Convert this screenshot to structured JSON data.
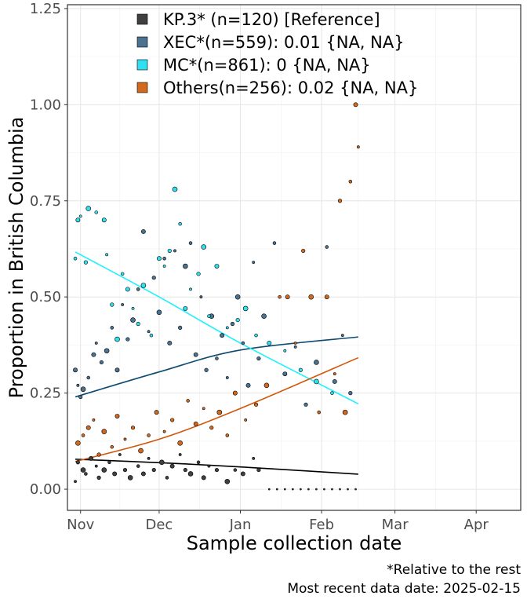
{
  "chart_data": {
    "type": "scatter",
    "title": "",
    "xlabel": "Sample collection date",
    "ylabel": "Proportion in British Columbia",
    "x_domain": [
      "2024-10-27",
      "2025-04-18"
    ],
    "ylim": [
      -0.055,
      1.26
    ],
    "x_ticks": [
      {
        "label": "Nov",
        "date": "2024-11-01"
      },
      {
        "label": "Dec",
        "date": "2024-12-01"
      },
      {
        "label": "Jan",
        "date": "2025-01-01"
      },
      {
        "label": "Feb",
        "date": "2025-02-01"
      },
      {
        "label": "Mar",
        "date": "2025-03-01"
      },
      {
        "label": "Apr",
        "date": "2025-04-01"
      }
    ],
    "y_ticks": [
      {
        "label": "0.00",
        "value": 0
      },
      {
        "label": "0.25",
        "value": 0.25
      },
      {
        "label": "0.50",
        "value": 0.5
      },
      {
        "label": "0.75",
        "value": 0.75
      },
      {
        "label": "1.00",
        "value": 1.0
      },
      {
        "label": "1.25",
        "value": 1.25
      }
    ],
    "grid": true,
    "legend_position": "top",
    "series": [
      {
        "name": "KP.3* (n=120)  [Reference]",
        "color": "#404040",
        "fit": [
          [
            "2024-10-30",
            0.078
          ],
          [
            "2024-12-01",
            0.069
          ],
          [
            "2025-01-01",
            0.058
          ],
          [
            "2025-02-15",
            0.039
          ]
        ],
        "points": [
          [
            "2024-10-30",
            0.02
          ],
          [
            "2024-10-31",
            0.07
          ],
          [
            "2024-11-02",
            0.05
          ],
          [
            "2024-11-03",
            0.04
          ],
          [
            "2024-11-05",
            0.08
          ],
          [
            "2024-11-07",
            0.06
          ],
          [
            "2024-11-08",
            0.03
          ],
          [
            "2024-11-10",
            0.05
          ],
          [
            "2024-11-12",
            0.07
          ],
          [
            "2024-11-14",
            0.04
          ],
          [
            "2024-11-16",
            0.09
          ],
          [
            "2024-11-18",
            0.05
          ],
          [
            "2024-11-20",
            0.03
          ],
          [
            "2024-11-23",
            0.06
          ],
          [
            "2024-11-25",
            0.04
          ],
          [
            "2024-11-27",
            0.08
          ],
          [
            "2024-11-29",
            0.05
          ],
          [
            "2024-12-02",
            0.07
          ],
          [
            "2024-12-04",
            0.03
          ],
          [
            "2024-12-06",
            0.06
          ],
          [
            "2024-12-09",
            0.09
          ],
          [
            "2024-12-11",
            0.05
          ],
          [
            "2024-12-13",
            0.04
          ],
          [
            "2024-12-16",
            0.07
          ],
          [
            "2024-12-18",
            0.03
          ],
          [
            "2024-12-20",
            0.06
          ],
          [
            "2024-12-23",
            0.05
          ],
          [
            "2024-12-27",
            0.02
          ],
          [
            "2024-12-30",
            0.05
          ],
          [
            "2025-01-02",
            0.04
          ],
          [
            "2025-01-06",
            0.08
          ],
          [
            "2025-01-08",
            0.05
          ],
          [
            "2025-01-12",
            0.0
          ],
          [
            "2025-01-15",
            0.0
          ],
          [
            "2025-01-18",
            0.0
          ],
          [
            "2025-01-21",
            0.0
          ],
          [
            "2025-01-24",
            0.0
          ],
          [
            "2025-01-27",
            0.0
          ],
          [
            "2025-01-30",
            0.0
          ],
          [
            "2025-02-02",
            0.0
          ],
          [
            "2025-02-05",
            0.0
          ],
          [
            "2025-02-08",
            0.0
          ],
          [
            "2025-02-11",
            0.0
          ],
          [
            "2025-02-14",
            0.0
          ]
        ]
      },
      {
        "name": "XEC*(n=559): 0.01 {NA, NA}",
        "color": "#4a7391",
        "fit": [
          [
            "2024-10-30",
            0.24
          ],
          [
            "2024-12-01",
            0.305
          ],
          [
            "2025-01-01",
            0.362
          ],
          [
            "2025-02-15",
            0.396
          ]
        ],
        "points": [
          [
            "2024-10-30",
            0.31
          ],
          [
            "2024-10-31",
            0.27
          ],
          [
            "2024-11-01",
            0.24
          ],
          [
            "2024-11-02",
            0.26
          ],
          [
            "2024-11-04",
            0.29
          ],
          [
            "2024-11-06",
            0.35
          ],
          [
            "2024-11-07",
            0.38
          ],
          [
            "2024-11-09",
            0.33
          ],
          [
            "2024-11-11",
            0.36
          ],
          [
            "2024-11-13",
            0.42
          ],
          [
            "2024-11-15",
            0.31
          ],
          [
            "2024-11-17",
            0.48
          ],
          [
            "2024-11-19",
            0.39
          ],
          [
            "2024-11-21",
            0.44
          ],
          [
            "2024-11-23",
            0.52
          ],
          [
            "2024-11-25",
            0.67
          ],
          [
            "2024-11-27",
            0.41
          ],
          [
            "2024-11-29",
            0.55
          ],
          [
            "2024-12-01",
            0.46
          ],
          [
            "2024-12-03",
            0.6
          ],
          [
            "2024-12-05",
            0.38
          ],
          [
            "2024-12-07",
            0.62
          ],
          [
            "2024-12-09",
            0.42
          ],
          [
            "2024-12-11",
            0.58
          ],
          [
            "2024-12-13",
            0.64
          ],
          [
            "2024-12-15",
            0.35
          ],
          [
            "2024-12-17",
            0.5
          ],
          [
            "2024-12-19",
            0.31
          ],
          [
            "2024-12-21",
            0.45
          ],
          [
            "2024-12-23",
            0.34
          ],
          [
            "2024-12-25",
            0.4
          ],
          [
            "2024-12-27",
            0.29
          ],
          [
            "2024-12-29",
            0.43
          ],
          [
            "2024-12-31",
            0.5
          ],
          [
            "2025-01-02",
            0.38
          ],
          [
            "2025-01-04",
            0.27
          ],
          [
            "2025-01-06",
            0.59
          ],
          [
            "2025-01-08",
            0.34
          ],
          [
            "2025-01-10",
            0.45
          ],
          [
            "2025-01-14",
            0.64
          ],
          [
            "2025-01-18",
            0.3
          ],
          [
            "2025-01-22",
            0.37
          ],
          [
            "2025-01-26",
            0.22
          ],
          [
            "2025-01-30",
            0.33
          ],
          [
            "2025-02-03",
            0.63
          ],
          [
            "2025-02-06",
            0.28
          ],
          [
            "2025-02-09",
            0.4
          ],
          [
            "2025-02-12",
            0.25
          ]
        ]
      },
      {
        "name": "MC*(n=861): 0 {NA, NA}",
        "color": "#2ee0f0",
        "fit": [
          [
            "2024-10-30",
            0.617
          ],
          [
            "2024-12-01",
            0.5
          ],
          [
            "2025-01-01",
            0.38
          ],
          [
            "2025-02-15",
            0.222
          ]
        ],
        "points": [
          [
            "2024-10-30",
            0.6
          ],
          [
            "2024-10-31",
            0.7
          ],
          [
            "2024-11-01",
            0.71
          ],
          [
            "2024-11-03",
            0.59
          ],
          [
            "2024-11-04",
            0.73
          ],
          [
            "2024-11-07",
            0.72
          ],
          [
            "2024-11-10",
            0.7
          ],
          [
            "2024-11-11",
            0.61
          ],
          [
            "2024-11-13",
            0.48
          ],
          [
            "2024-11-15",
            0.39
          ],
          [
            "2024-11-17",
            0.56
          ],
          [
            "2024-11-19",
            0.52
          ],
          [
            "2024-11-21",
            0.47
          ],
          [
            "2024-11-23",
            0.43
          ],
          [
            "2024-11-25",
            0.53
          ],
          [
            "2024-11-28",
            0.4
          ],
          [
            "2024-12-01",
            0.6
          ],
          [
            "2024-12-03",
            0.58
          ],
          [
            "2024-12-05",
            0.62
          ],
          [
            "2024-12-07",
            0.78
          ],
          [
            "2024-12-09",
            0.69
          ],
          [
            "2024-12-11",
            0.47
          ],
          [
            "2024-12-13",
            0.52
          ],
          [
            "2024-12-16",
            0.56
          ],
          [
            "2024-12-18",
            0.63
          ],
          [
            "2024-12-20",
            0.45
          ],
          [
            "2024-12-23",
            0.58
          ],
          [
            "2024-12-27",
            0.42
          ],
          [
            "2024-12-31",
            0.44
          ],
          [
            "2025-01-03",
            0.47
          ],
          [
            "2025-01-07",
            0.4
          ],
          [
            "2025-01-12",
            0.38
          ],
          [
            "2025-01-18",
            0.36
          ],
          [
            "2025-01-24",
            0.31
          ],
          [
            "2025-01-30",
            0.28
          ],
          [
            "2025-02-05",
            0.25
          ]
        ]
      },
      {
        "name": "Others(n=256): 0.02 {NA, NA}",
        "color": "#d2691e",
        "fit": [
          [
            "2024-10-30",
            0.072
          ],
          [
            "2024-12-01",
            0.13
          ],
          [
            "2025-01-01",
            0.21
          ],
          [
            "2025-02-15",
            0.342
          ]
        ],
        "points": [
          [
            "2024-10-31",
            0.12
          ],
          [
            "2024-11-02",
            0.14
          ],
          [
            "2024-11-04",
            0.16
          ],
          [
            "2024-11-06",
            0.18
          ],
          [
            "2024-11-08",
            0.09
          ],
          [
            "2024-11-10",
            0.15
          ],
          [
            "2024-11-13",
            0.11
          ],
          [
            "2024-11-15",
            0.19
          ],
          [
            "2024-11-18",
            0.13
          ],
          [
            "2024-11-21",
            0.16
          ],
          [
            "2024-11-24",
            0.1
          ],
          [
            "2024-11-27",
            0.14
          ],
          [
            "2024-11-30",
            0.2
          ],
          [
            "2024-12-03",
            0.15
          ],
          [
            "2024-12-06",
            0.18
          ],
          [
            "2024-12-09",
            0.12
          ],
          [
            "2024-12-12",
            0.23
          ],
          [
            "2024-12-15",
            0.17
          ],
          [
            "2024-12-18",
            0.21
          ],
          [
            "2024-12-21",
            0.16
          ],
          [
            "2024-12-24",
            0.2
          ],
          [
            "2024-12-27",
            0.14
          ],
          [
            "2024-12-30",
            0.25
          ],
          [
            "2025-01-03",
            0.18
          ],
          [
            "2025-01-07",
            0.22
          ],
          [
            "2025-01-11",
            0.27
          ],
          [
            "2025-01-16",
            0.5
          ],
          [
            "2025-01-19",
            0.5
          ],
          [
            "2025-01-22",
            0.38
          ],
          [
            "2025-01-25",
            0.62
          ],
          [
            "2025-01-28",
            0.5
          ],
          [
            "2025-01-31",
            0.2
          ],
          [
            "2025-02-03",
            0.5
          ],
          [
            "2025-02-06",
            0.3
          ],
          [
            "2025-02-08",
            0.75
          ],
          [
            "2025-02-10",
            0.2
          ],
          [
            "2025-02-12",
            0.8
          ],
          [
            "2025-02-14",
            1.0
          ],
          [
            "2025-02-15",
            0.89
          ]
        ]
      }
    ],
    "caption": [
      "*Relative to the rest",
      "Most recent data date: 2025-02-15"
    ]
  }
}
